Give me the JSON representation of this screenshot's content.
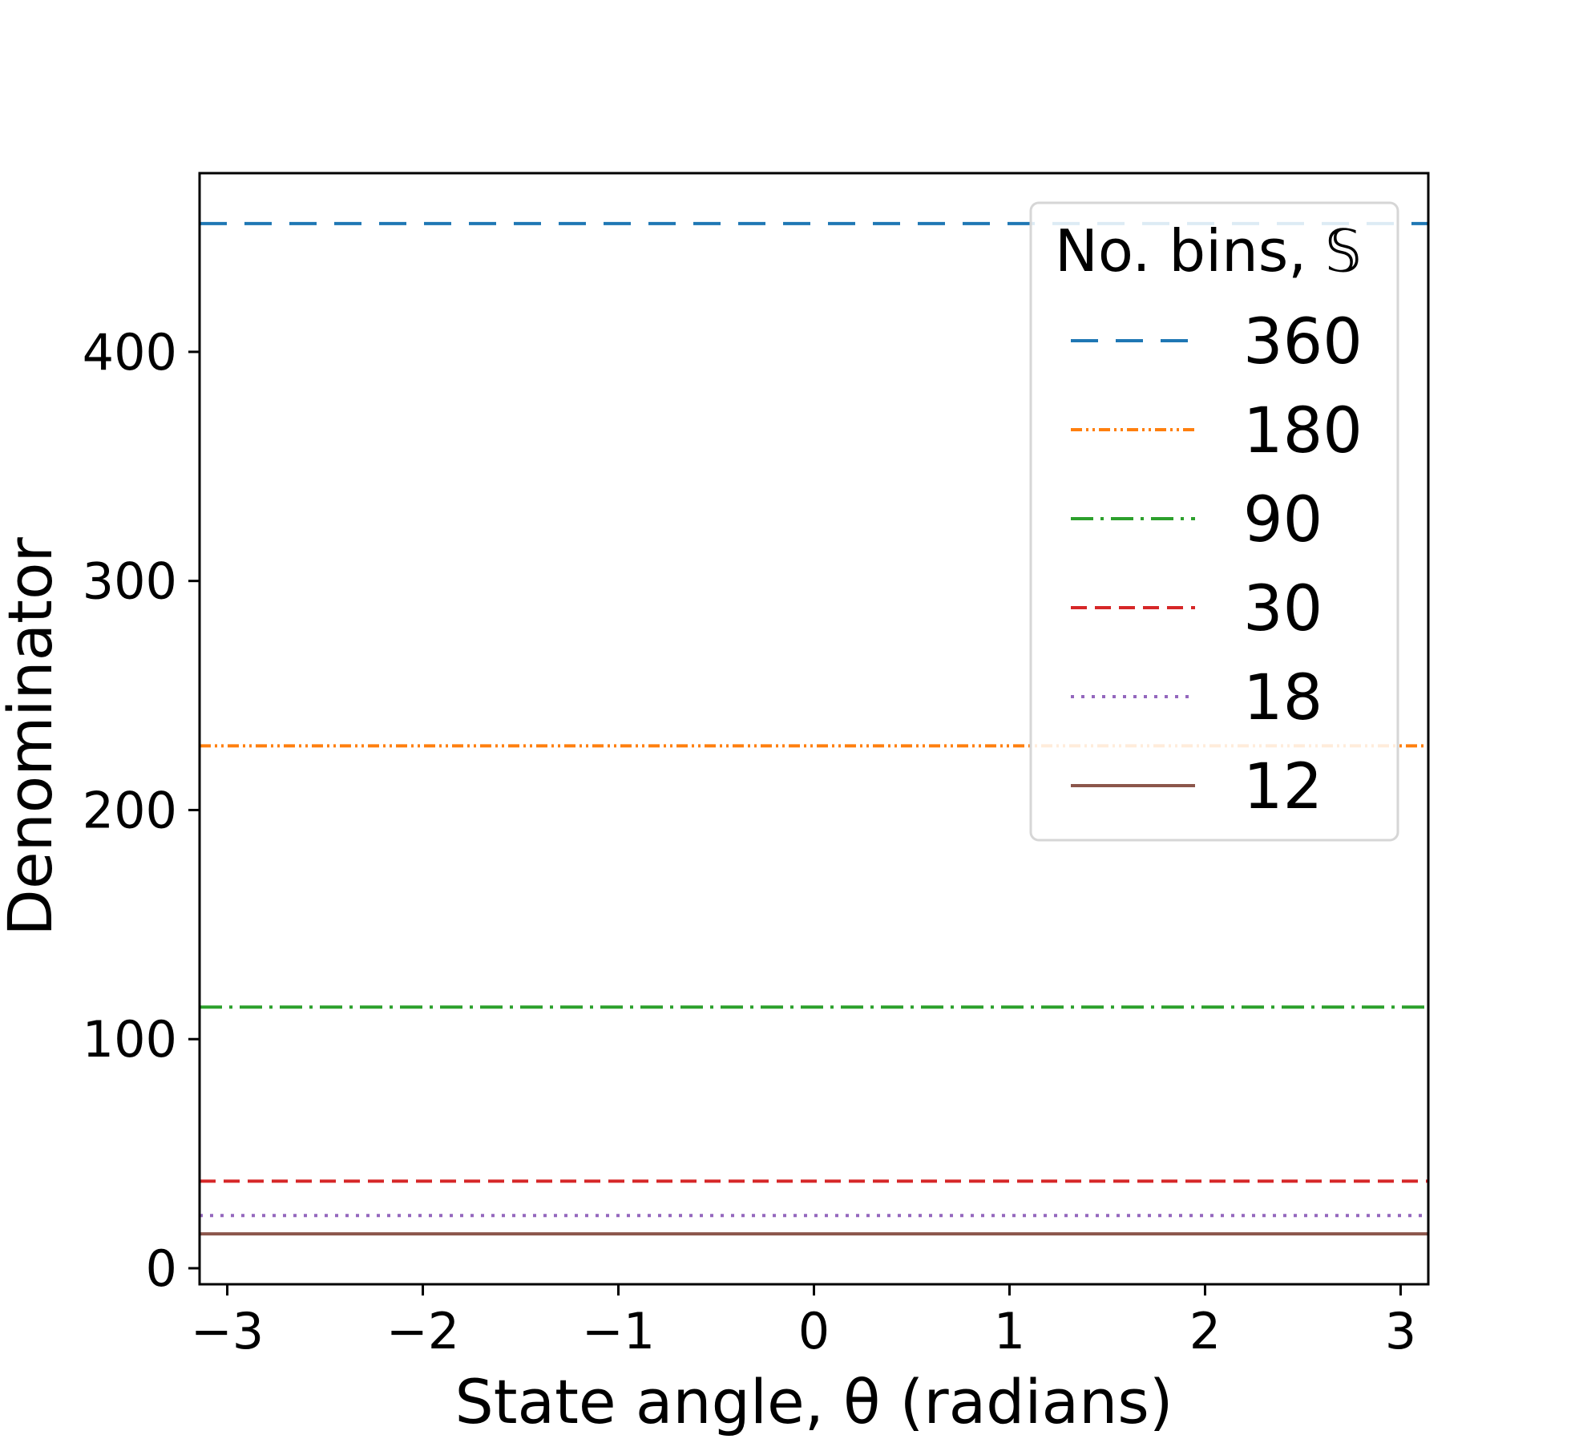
{
  "chart_data": {
    "type": "line",
    "xlabel": "State angle, θ (radians)",
    "ylabel": "Denominator",
    "xlim": [
      -3.1416,
      3.1416
    ],
    "ylim": [
      -7,
      478
    ],
    "xticks": [
      -3,
      -2,
      -1,
      0,
      1,
      2,
      3
    ],
    "xtick_labels": [
      "−3",
      "−2",
      "−1",
      "0",
      "1",
      "2",
      "3"
    ],
    "yticks": [
      0,
      100,
      200,
      300,
      400
    ],
    "ytick_labels": [
      "0",
      "100",
      "200",
      "300",
      "400"
    ],
    "grid": false,
    "legend": {
      "title": "No. bins, 𝕊",
      "placement": "top-right"
    },
    "series": [
      {
        "name": "360",
        "x": [
          -3.1416,
          3.1416
        ],
        "y": [
          456,
          456
        ],
        "color": "#1f77b4",
        "style": "dashed"
      },
      {
        "name": "180",
        "x": [
          -3.1416,
          3.1416
        ],
        "y": [
          228,
          228
        ],
        "color": "#ff7f0e",
        "style": "dash-dot-dot"
      },
      {
        "name": "90",
        "x": [
          -3.1416,
          3.1416
        ],
        "y": [
          114,
          114
        ],
        "color": "#2ca02c",
        "style": "dash-dot"
      },
      {
        "name": "30",
        "x": [
          -3.1416,
          3.1416
        ],
        "y": [
          38,
          38
        ],
        "color": "#d62728",
        "style": "dashed-short"
      },
      {
        "name": "18",
        "x": [
          -3.1416,
          3.1416
        ],
        "y": [
          23,
          23
        ],
        "color": "#9467bd",
        "style": "dotted"
      },
      {
        "name": "12",
        "x": [
          -3.1416,
          3.1416
        ],
        "y": [
          15,
          15
        ],
        "color": "#8c564b",
        "style": "solid"
      }
    ]
  }
}
